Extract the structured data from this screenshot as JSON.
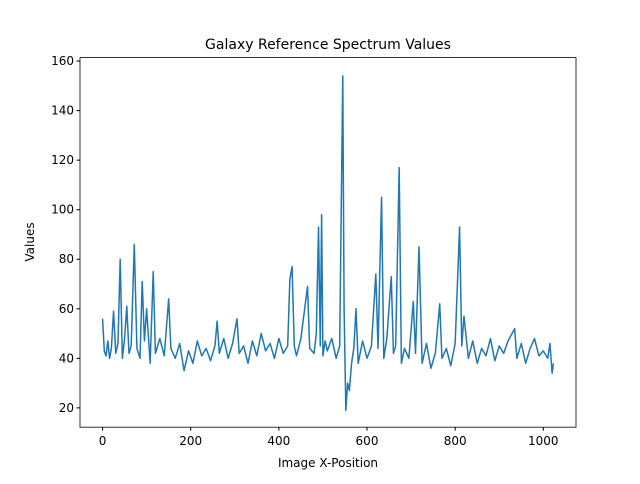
{
  "chart_data": {
    "type": "line",
    "title": "Galaxy Reference Spectrum Values",
    "x_label": "Image X-Position",
    "y_label": "Values",
    "x": [
      0,
      4,
      8,
      12,
      16,
      20,
      25,
      30,
      35,
      40,
      45,
      50,
      55,
      60,
      65,
      72,
      78,
      85,
      90,
      95,
      100,
      108,
      115,
      120,
      130,
      140,
      150,
      155,
      165,
      175,
      185,
      195,
      205,
      215,
      225,
      235,
      245,
      255,
      260,
      265,
      275,
      285,
      295,
      305,
      310,
      320,
      330,
      340,
      350,
      360,
      370,
      380,
      390,
      400,
      410,
      420,
      425,
      430,
      435,
      440,
      450,
      460,
      465,
      470,
      480,
      485,
      490,
      494,
      497,
      500,
      505,
      510,
      520,
      530,
      538,
      545,
      548,
      552,
      556,
      560,
      565,
      570,
      575,
      580,
      590,
      600,
      610,
      620,
      625,
      633,
      638,
      645,
      655,
      660,
      665,
      673,
      678,
      685,
      695,
      705,
      710,
      718,
      725,
      735,
      745,
      755,
      765,
      770,
      780,
      790,
      800,
      810,
      815,
      820,
      830,
      840,
      850,
      860,
      870,
      880,
      890,
      900,
      910,
      920,
      935,
      940,
      950,
      960,
      970,
      980,
      990,
      1000,
      1010,
      1015,
      1020,
      1023
    ],
    "series": [
      {
        "name": "Values",
        "color": "#1f77b4",
        "values": [
          56,
          43,
          41,
          47,
          40,
          44,
          59,
          42,
          46,
          80,
          40,
          48,
          61,
          42,
          45,
          86,
          44,
          40,
          71,
          47,
          60,
          38,
          75,
          42,
          48,
          41,
          64,
          44,
          40,
          46,
          35,
          43,
          38,
          47,
          41,
          44,
          39,
          45,
          55,
          42,
          48,
          40,
          46,
          56,
          42,
          45,
          38,
          47,
          41,
          50,
          43,
          46,
          40,
          48,
          42,
          45,
          72,
          77,
          45,
          41,
          48,
          62,
          69,
          44,
          42,
          50,
          93,
          45,
          98,
          41,
          47,
          43,
          48,
          40,
          45,
          154,
          60,
          19,
          30,
          27,
          38,
          44,
          60,
          38,
          47,
          40,
          45,
          74,
          44,
          105,
          40,
          48,
          73,
          42,
          45,
          117,
          38,
          44,
          40,
          63,
          42,
          85,
          38,
          46,
          36,
          42,
          62,
          40,
          44,
          37,
          46,
          93,
          45,
          57,
          40,
          47,
          38,
          44,
          41,
          48,
          39,
          45,
          42,
          47,
          52,
          40,
          46,
          38,
          44,
          48,
          41,
          43,
          40,
          46,
          34,
          38
        ]
      }
    ],
    "xlim": [
      -51.15,
      1074.15
    ],
    "ylim": [
      12.2,
      161.4
    ],
    "xticks": [
      0,
      200,
      400,
      600,
      800,
      1000
    ],
    "yticks": [
      20,
      40,
      60,
      80,
      100,
      120,
      140,
      160
    ]
  }
}
